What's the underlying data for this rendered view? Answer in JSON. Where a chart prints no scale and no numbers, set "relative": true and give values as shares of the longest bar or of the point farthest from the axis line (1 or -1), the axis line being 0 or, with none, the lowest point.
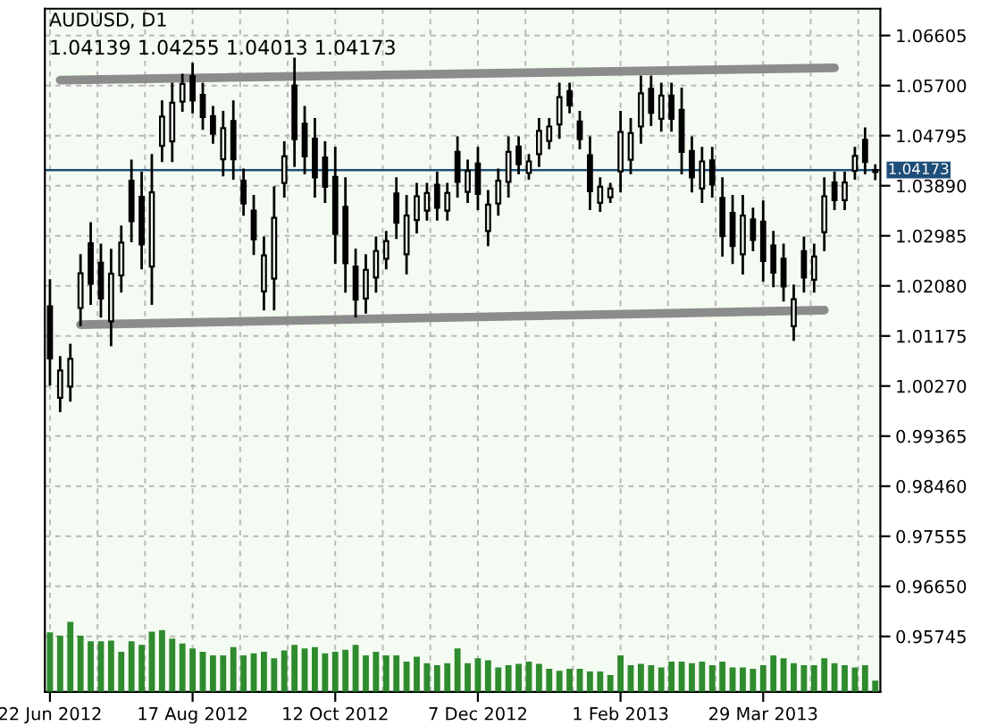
{
  "chart_data": [
    {
      "type": "candlestick",
      "title": "AUDUSD, D1",
      "annotations": [
        "1.04139 1.04255 1.04013 1.04173"
      ],
      "categories": [
        "22 Jun 2012",
        null,
        null,
        null,
        null,
        null,
        null,
        null,
        null,
        null,
        null,
        null,
        null,
        null,
        "17 Aug 2012",
        null,
        null,
        null,
        null,
        null,
        null,
        null,
        null,
        null,
        null,
        null,
        null,
        null,
        "12 Oct 2012",
        null,
        null,
        null,
        null,
        null,
        null,
        null,
        null,
        null,
        null,
        null,
        null,
        null,
        "7 Dec 2012",
        null,
        null,
        null,
        null,
        null,
        null,
        null,
        null,
        null,
        null,
        null,
        null,
        null,
        "1 Feb 2013",
        null,
        null,
        null,
        null,
        null,
        null,
        null,
        null,
        null,
        null,
        null,
        null,
        null,
        "29 Mar 2013",
        null,
        null,
        null,
        null,
        null,
        null,
        null,
        null,
        null,
        null,
        null
      ],
      "ohlc": [
        [
          1.0171,
          1.0218,
          1.003,
          1.0077
        ],
        [
          1.0006,
          1.0079,
          0.9982,
          1.0055
        ],
        [
          1.0026,
          1.0101,
          1.0001,
          1.0076
        ],
        [
          1.0168,
          1.0263,
          1.0137,
          1.0231
        ],
        [
          1.0285,
          1.0321,
          1.0176,
          1.0212
        ],
        [
          1.025,
          1.0282,
          1.0153,
          1.0185
        ],
        [
          1.0144,
          1.0273,
          1.0101,
          1.023
        ],
        [
          1.0227,
          1.0315,
          1.0198,
          1.0286
        ],
        [
          1.0398,
          1.0434,
          1.0289,
          1.0325
        ],
        [
          1.0369,
          1.0412,
          1.024,
          1.0283
        ],
        [
          1.0243,
          1.0444,
          1.0176,
          1.0377
        ],
        [
          1.0461,
          1.0541,
          1.0434,
          1.0514
        ],
        [
          1.0469,
          1.0573,
          1.0434,
          1.0539
        ],
        [
          1.0541,
          1.0589,
          1.0525,
          1.0573
        ],
        [
          1.0587,
          1.0609,
          1.0522,
          1.0543
        ],
        [
          1.0553,
          1.0573,
          1.0492,
          1.0513
        ],
        [
          1.0515,
          1.0531,
          1.0467,
          1.0483
        ],
        [
          1.0437,
          1.0522,
          1.0408,
          1.0493
        ],
        [
          1.0506,
          1.0541,
          1.0402,
          1.0437
        ],
        [
          1.0398,
          1.0418,
          1.0337,
          1.0357
        ],
        [
          1.0344,
          1.037,
          1.0266,
          1.0292
        ],
        [
          1.0198,
          1.0295,
          1.0166,
          1.0263
        ],
        [
          1.0221,
          1.0386,
          1.0166,
          1.0331
        ],
        [
          1.0394,
          1.0467,
          1.037,
          1.0442
        ],
        [
          1.057,
          1.0618,
          1.0425,
          1.0473
        ],
        [
          1.0501,
          1.0531,
          1.0412,
          1.0442
        ],
        [
          1.0474,
          1.0509,
          1.037,
          1.0404
        ],
        [
          1.044,
          1.0467,
          1.036,
          1.0387
        ],
        [
          1.0405,
          1.0457,
          1.025,
          1.0302
        ],
        [
          1.0351,
          1.0402,
          1.0198,
          1.0249
        ],
        [
          1.0243,
          1.0273,
          1.0153,
          1.0183
        ],
        [
          1.0185,
          1.0263,
          1.016,
          1.0237
        ],
        [
          1.0223,
          1.0295,
          1.0198,
          1.0271
        ],
        [
          1.0257,
          1.0305,
          1.024,
          1.0289
        ],
        [
          1.0375,
          1.0402,
          1.0295,
          1.0322
        ],
        [
          1.0265,
          1.037,
          1.0231,
          1.0335
        ],
        [
          1.0327,
          1.0392,
          1.0305,
          1.037
        ],
        [
          1.0344,
          1.0392,
          1.0328,
          1.0376
        ],
        [
          1.0391,
          1.0412,
          1.0328,
          1.0349
        ],
        [
          1.0344,
          1.0392,
          1.0328,
          1.0376
        ],
        [
          1.045,
          1.0476,
          1.037,
          1.0396
        ],
        [
          1.0378,
          1.0434,
          1.036,
          1.0416
        ],
        [
          1.0429,
          1.0457,
          1.0347,
          1.0374
        ],
        [
          1.0307,
          1.0379,
          1.0282,
          1.0355
        ],
        [
          1.0357,
          1.0418,
          1.0337,
          1.0398
        ],
        [
          1.0396,
          1.0476,
          1.037,
          1.045
        ],
        [
          1.046,
          1.0476,
          1.0412,
          1.0428
        ],
        [
          1.0412,
          1.0444,
          1.0402,
          1.0433
        ],
        [
          1.0446,
          1.0509,
          1.0425,
          1.0488
        ],
        [
          1.047,
          1.0509,
          1.0457,
          1.0496
        ],
        [
          1.05,
          1.0573,
          1.0476,
          1.0549
        ],
        [
          1.056,
          1.0573,
          1.0522,
          1.0534
        ],
        [
          1.0505,
          1.0522,
          1.0457,
          1.0473
        ],
        [
          1.0444,
          1.0476,
          1.0347,
          1.0379
        ],
        [
          1.0358,
          1.0402,
          1.0344,
          1.0387
        ],
        [
          1.0368,
          1.0392,
          1.036,
          1.0384
        ],
        [
          1.0415,
          1.0522,
          1.0379,
          1.0486
        ],
        [
          1.0436,
          1.0509,
          1.0412,
          1.0484
        ],
        [
          1.0496,
          1.0586,
          1.0467,
          1.0556
        ],
        [
          1.0564,
          1.0586,
          1.0499,
          1.0521
        ],
        [
          1.051,
          1.0573,
          1.0489,
          1.0552
        ],
        [
          1.0552,
          1.0573,
          1.0489,
          1.051
        ],
        [
          1.0526,
          1.0564,
          1.0412,
          1.045
        ],
        [
          1.0452,
          1.0476,
          1.0379,
          1.0404
        ],
        [
          1.0384,
          1.0457,
          1.036,
          1.0433
        ],
        [
          1.0435,
          1.0457,
          1.037,
          1.0391
        ],
        [
          1.0367,
          1.0402,
          1.0263,
          1.0298
        ],
        [
          1.034,
          1.037,
          1.025,
          1.028
        ],
        [
          1.0265,
          1.037,
          1.0231,
          1.0335
        ],
        [
          1.0328,
          1.0347,
          1.0273,
          1.0291
        ],
        [
          1.0324,
          1.036,
          1.0218,
          1.0253
        ],
        [
          1.0281,
          1.0305,
          1.0208,
          1.0232
        ],
        [
          1.0257,
          1.0282,
          1.0182,
          1.0207
        ],
        [
          1.0135,
          1.0208,
          1.0111,
          1.0184
        ],
        [
          1.0271,
          1.0295,
          1.0198,
          1.0223
        ],
        [
          1.0219,
          1.0282,
          1.0198,
          1.0261
        ],
        [
          1.0305,
          1.0402,
          1.0273,
          1.037
        ],
        [
          1.0395,
          1.0412,
          1.0347,
          1.0363
        ],
        [
          1.0363,
          1.0412,
          1.0347,
          1.0395
        ],
        [
          1.0416,
          1.0457,
          1.0402,
          1.0443
        ],
        [
          1.0472,
          1.0492,
          1.0412,
          1.0432
        ],
        [
          1.04139,
          1.04255,
          1.04013,
          1.04173
        ]
      ],
      "color": "#000000",
      "series": [
        {
          "type": "line",
          "color": "#8c8c8c",
          "values": [
            null,
            1.058,
            null,
            null,
            null,
            null,
            null,
            null,
            null,
            null,
            null,
            null,
            null,
            null,
            null,
            null,
            null,
            null,
            null,
            null,
            null,
            null,
            null,
            null,
            null,
            null,
            null,
            null,
            null,
            null,
            null,
            null,
            null,
            null,
            null,
            null,
            null,
            null,
            null,
            null,
            null,
            null,
            null,
            null,
            null,
            null,
            null,
            null,
            null,
            null,
            null,
            null,
            null,
            null,
            null,
            null,
            null,
            null,
            null,
            null,
            null,
            null,
            null,
            null,
            null,
            null,
            null,
            null,
            null,
            null,
            null,
            null,
            null,
            null,
            null,
            null,
            null,
            1.0602,
            null,
            null,
            null,
            null
          ]
        },
        {
          "type": "line",
          "color": "#8c8c8c",
          "values": [
            null,
            null,
            null,
            1.0138,
            null,
            null,
            null,
            null,
            null,
            null,
            null,
            null,
            null,
            null,
            null,
            null,
            null,
            null,
            null,
            null,
            null,
            null,
            null,
            null,
            null,
            null,
            null,
            null,
            null,
            null,
            null,
            null,
            null,
            null,
            null,
            null,
            null,
            null,
            null,
            null,
            null,
            null,
            null,
            null,
            null,
            null,
            null,
            null,
            null,
            null,
            null,
            null,
            null,
            null,
            null,
            null,
            null,
            null,
            null,
            null,
            null,
            null,
            null,
            null,
            null,
            null,
            null,
            null,
            null,
            null,
            null,
            null,
            null,
            null,
            null,
            null,
            1.0164,
            null,
            null,
            null,
            null,
            null
          ]
        }
      ],
      "ref_lines": [
        {
          "axis": "y",
          "value": 1.04173,
          "label": "1.04173",
          "color": "#1f4e79"
        }
      ],
      "ylim": [
        0.94743,
        1.07089
      ],
      "yticks": [
        0.95745,
        {
          "value": 0.9665,
          "label": "0.96650"
        },
        0.97555,
        {
          "value": 0.9846,
          "label": "0.98460"
        },
        0.99365,
        {
          "value": 1.0027,
          "label": "1.00270"
        },
        1.01175,
        {
          "value": 1.0208,
          "label": "1.02080"
        },
        1.02985,
        {
          "value": 1.0389,
          "label": "1.03890"
        },
        1.04795,
        {
          "value": 1.057,
          "label": "1.05700"
        },
        1.06605
      ],
      "grid": true,
      "legend": false
    },
    {
      "type": "bar",
      "relative": true,
      "color": "#2e8b2e",
      "tick_labels": false,
      "categories": [
        null,
        null,
        null,
        null,
        null,
        null,
        null,
        null,
        null,
        null,
        null,
        null,
        null,
        null,
        null,
        null,
        null,
        null,
        null,
        null,
        null,
        null,
        null,
        null,
        null,
        null,
        null,
        null,
        null,
        null,
        null,
        null,
        null,
        null,
        null,
        null,
        null,
        null,
        null,
        null,
        null,
        null,
        null,
        null,
        null,
        null,
        null,
        null,
        null,
        null,
        null,
        null,
        null,
        null,
        null,
        null,
        null,
        null,
        null,
        null,
        null,
        null,
        null,
        null,
        null,
        null,
        null,
        null,
        null,
        null,
        null,
        null,
        null,
        null,
        null,
        null,
        null,
        null,
        null,
        null,
        null,
        null
      ],
      "values": [
        0.85,
        0.8,
        1.0,
        0.8,
        0.72,
        0.72,
        0.73,
        0.57,
        0.72,
        0.67,
        0.86,
        0.88,
        0.76,
        0.69,
        0.62,
        0.57,
        0.52,
        0.52,
        0.64,
        0.52,
        0.55,
        0.57,
        0.48,
        0.59,
        0.67,
        0.62,
        0.64,
        0.55,
        0.57,
        0.6,
        0.67,
        0.52,
        0.57,
        0.52,
        0.52,
        0.43,
        0.5,
        0.41,
        0.38,
        0.41,
        0.62,
        0.41,
        0.48,
        0.45,
        0.35,
        0.38,
        0.4,
        0.43,
        0.4,
        0.33,
        0.3,
        0.33,
        0.33,
        0.29,
        0.29,
        0.24,
        0.52,
        0.38,
        0.4,
        0.38,
        0.35,
        0.43,
        0.43,
        0.41,
        0.43,
        0.38,
        0.43,
        0.35,
        0.35,
        0.33,
        0.38,
        0.52,
        0.48,
        0.41,
        0.38,
        0.38,
        0.48,
        0.41,
        0.38,
        0.35,
        0.38,
        0.16
      ]
    }
  ]
}
